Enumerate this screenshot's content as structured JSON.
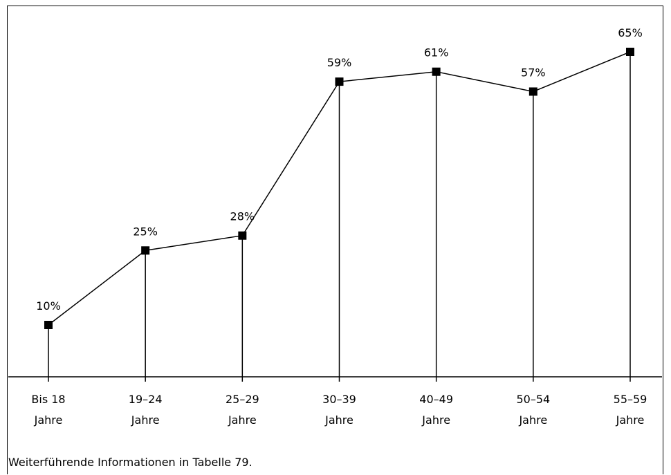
{
  "chart_data": {
    "type": "line",
    "categories": [
      [
        "Bis 18",
        "Jahre"
      ],
      [
        "19–24",
        "Jahre"
      ],
      [
        "25–29",
        "Jahre"
      ],
      [
        "30–39",
        "Jahre"
      ],
      [
        "40–49",
        "Jahre"
      ],
      [
        "50–54",
        "Jahre"
      ],
      [
        "55–59",
        "Jahre"
      ]
    ],
    "values": [
      10,
      25,
      28,
      59,
      61,
      57,
      65
    ],
    "value_labels": [
      "10%",
      "25%",
      "28%",
      "59%",
      "61%",
      "57%",
      "65%"
    ],
    "ylim": [
      0,
      70
    ],
    "grid": false,
    "marker": "square",
    "drop_lines": true
  },
  "footnote": "Weiterführende Informationen in Tabelle 79."
}
